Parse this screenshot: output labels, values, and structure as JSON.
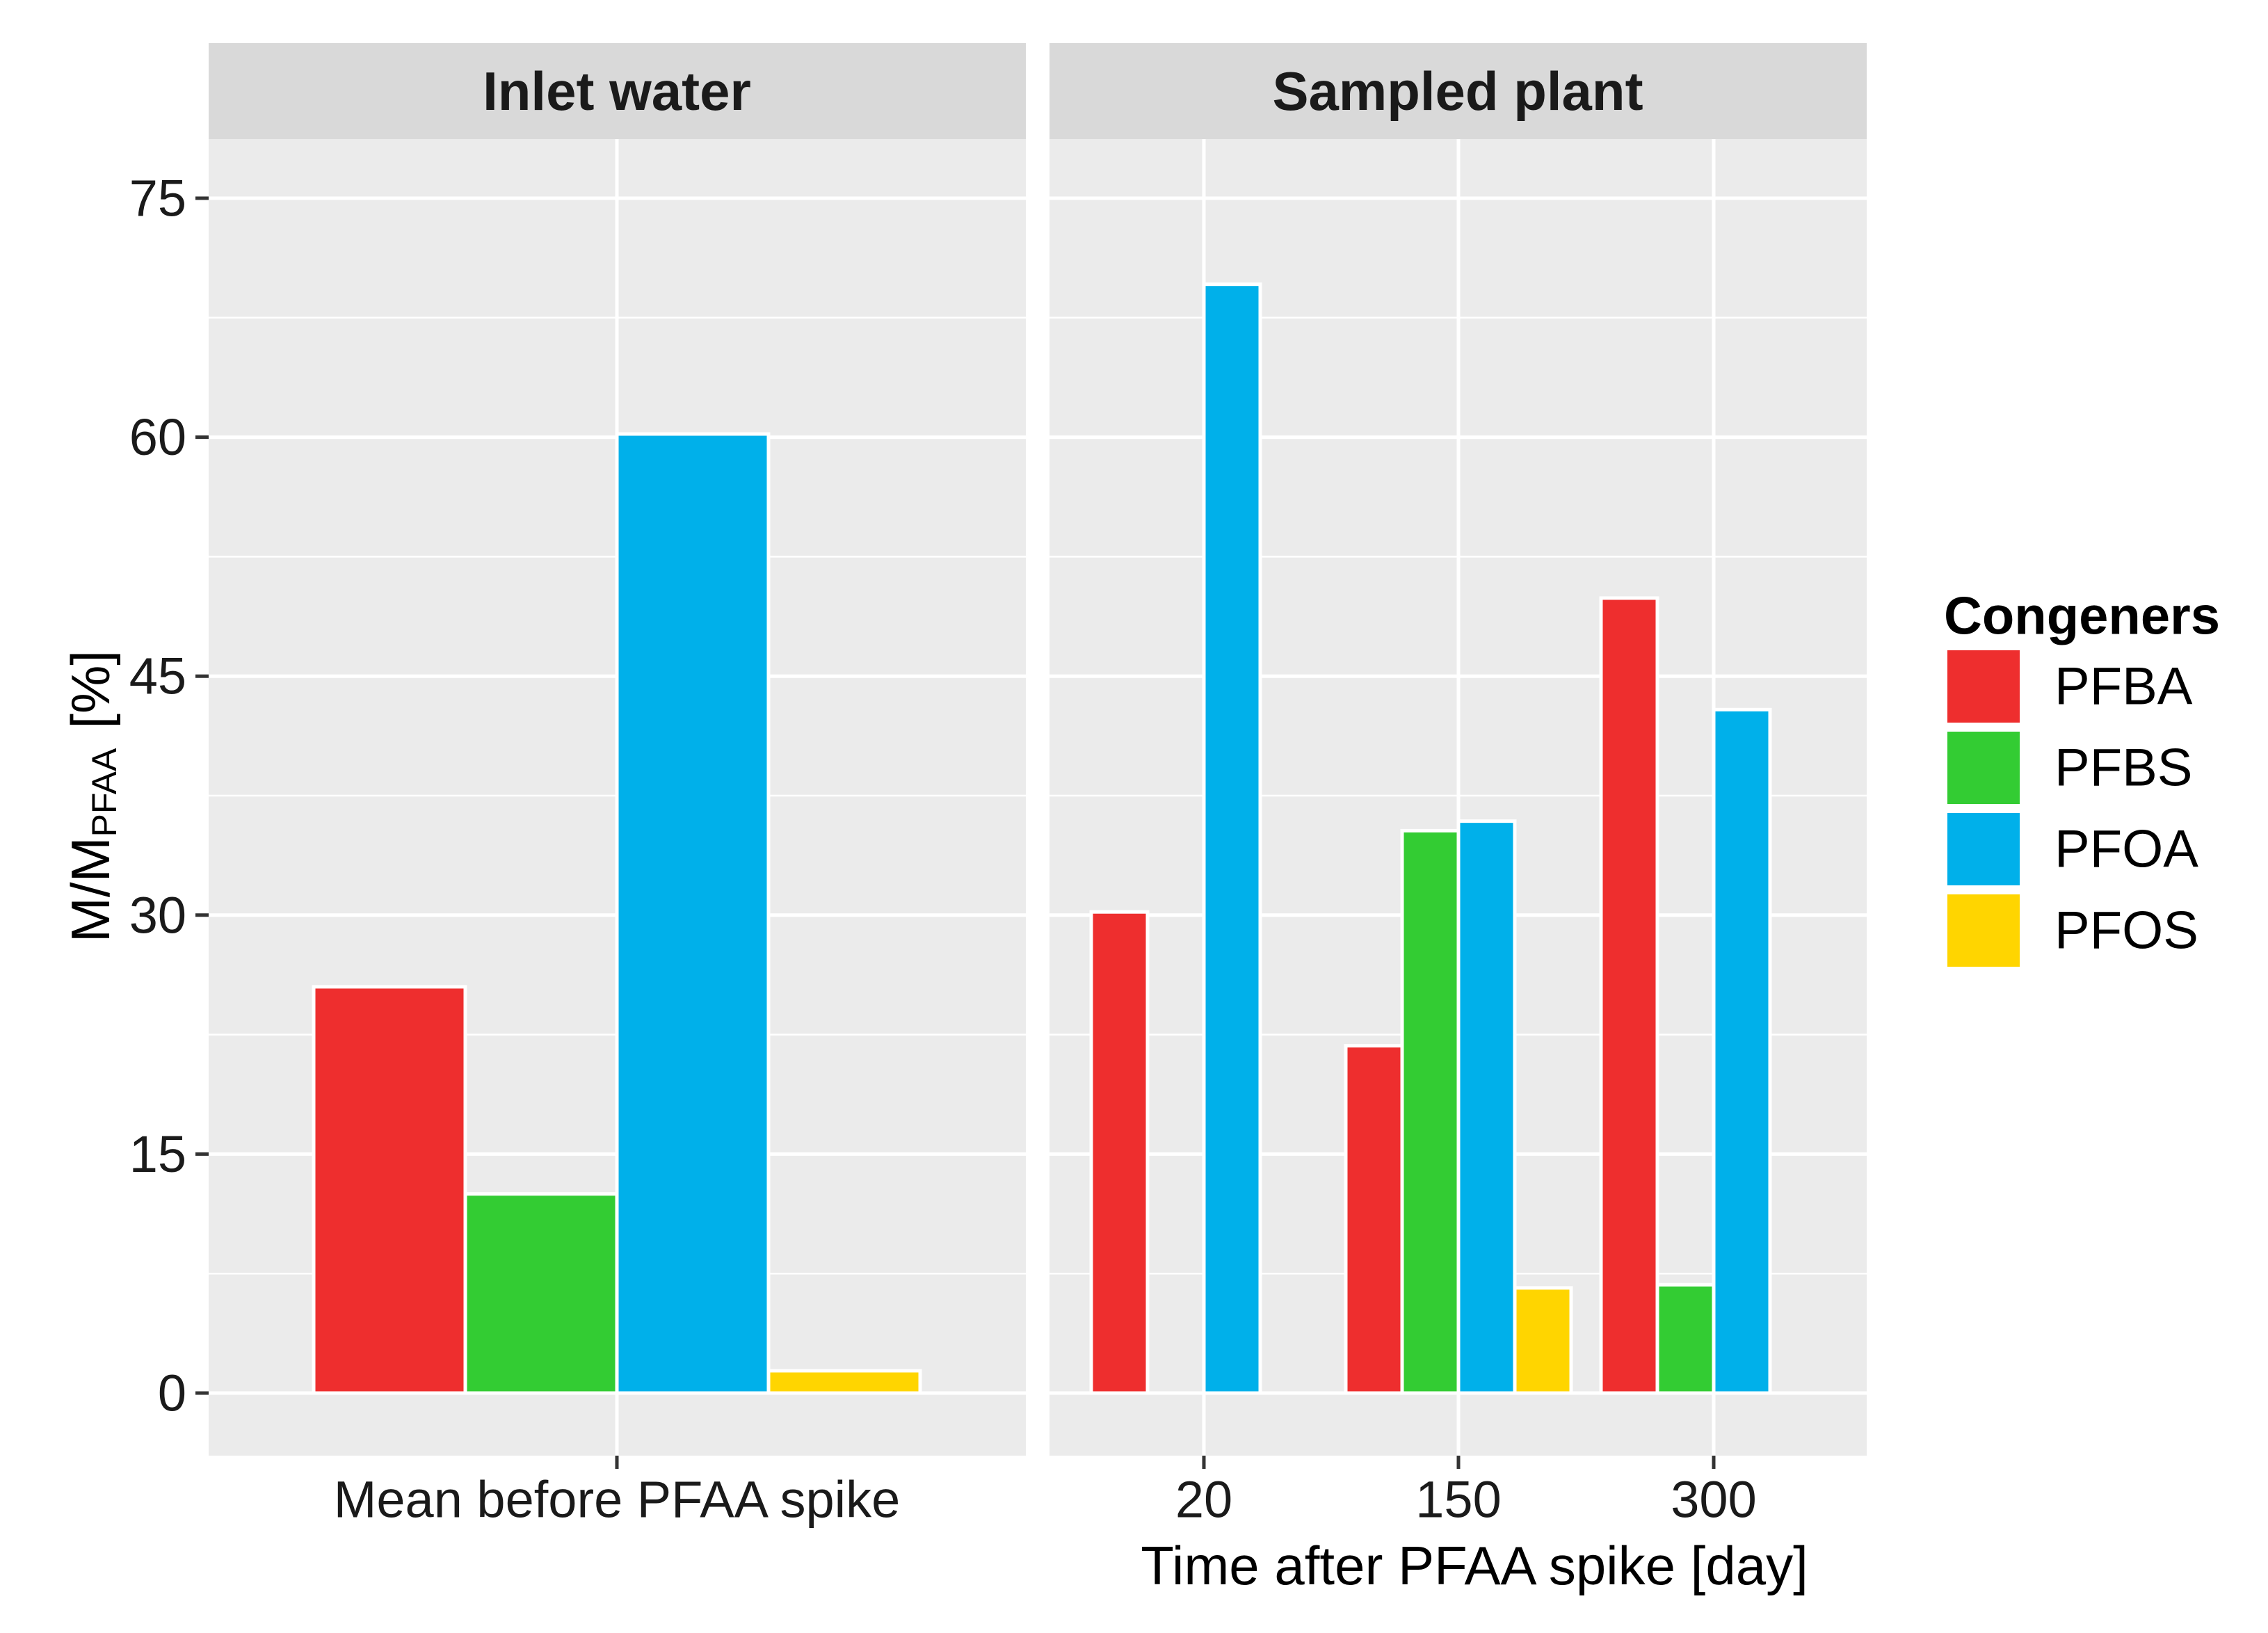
{
  "chart_data": {
    "type": "bar",
    "ylabel_main": "M/M",
    "ylabel_sub": "PFAA",
    "ylabel_unit": "[%]",
    "ylim": [
      0,
      75
    ],
    "y_ticks": [
      "0",
      "15",
      "30",
      "45",
      "60",
      "75"
    ],
    "y_tick_values": [
      0,
      15,
      30,
      45,
      60,
      75
    ],
    "colors": {
      "PFBA": "#ee2e2e",
      "PFBS": "#33cc33",
      "PFOA": "#00b0ea",
      "PFOS": "#ffd500"
    },
    "legend": {
      "title": "Congeners",
      "position": "right",
      "items": [
        "PFBA",
        "PFBS",
        "PFOA",
        "PFOS"
      ]
    },
    "panels": [
      {
        "title": "Inlet water",
        "xlabel": "",
        "categories": [
          "Mean before PFAA spike"
        ],
        "series": [
          {
            "name": "PFBA",
            "values": [
              25.5
            ]
          },
          {
            "name": "PFBS",
            "values": [
              12.5
            ]
          },
          {
            "name": "PFOA",
            "values": [
              60.2
            ]
          },
          {
            "name": "PFOS",
            "values": [
              1.4
            ]
          }
        ]
      },
      {
        "title": "Sampled plant",
        "xlabel": "Time after PFAA spike [day]",
        "categories": [
          "20",
          "150",
          "300"
        ],
        "series": [
          {
            "name": "PFBA",
            "values": [
              30.2,
              21.8,
              49.9
            ]
          },
          {
            "name": "PFBS",
            "values": [
              null,
              35.3,
              6.8
            ]
          },
          {
            "name": "PFOA",
            "values": [
              69.6,
              35.9,
              42.9
            ]
          },
          {
            "name": "PFOS",
            "values": [
              null,
              6.6,
              null
            ]
          }
        ]
      }
    ]
  }
}
